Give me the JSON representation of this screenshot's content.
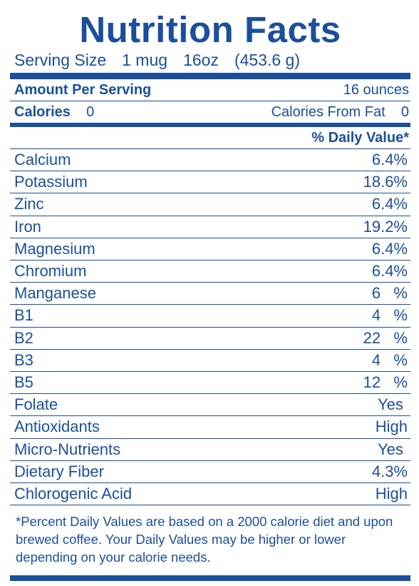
{
  "header": {
    "title": "Nutrition Facts",
    "serving": [
      "Serving Size",
      "1 mug",
      "16oz",
      "(453.6 g)"
    ]
  },
  "amount": {
    "label": "Amount Per Serving",
    "value": "16 ounces"
  },
  "calories": {
    "label": "Calories",
    "value": "0",
    "fat_label": "Calories From Fat",
    "fat_value": "0"
  },
  "daily_value_header": "% Daily Value*",
  "rows": [
    [
      "Calcium",
      "6.4%"
    ],
    [
      "Potassium",
      "18.6%"
    ],
    [
      "Zinc",
      "6.4%"
    ],
    [
      "Iron",
      "19.2%"
    ],
    [
      "Magnesium",
      "6.4%"
    ],
    [
      "Chromium",
      "6.4%"
    ],
    [
      "Manganese",
      "6   %"
    ],
    [
      "B1",
      "4   %"
    ],
    [
      "B2",
      "22   %"
    ],
    [
      "B3",
      "4   %"
    ],
    [
      "B5",
      "12   %"
    ],
    [
      "Folate",
      "Yes "
    ],
    [
      "Antioxidants",
      "High"
    ],
    [
      "Micro-Nutrients",
      "Yes "
    ],
    [
      "Dietary Fiber",
      "4.3%"
    ],
    [
      "Chlorogenic Acid",
      "High"
    ]
  ],
  "footnote": "*Percent Daily Values are based on a 2000 calorie diet and upon brewed coffee. Your Daily Values may be higher or lower depending on your calorie needs."
}
